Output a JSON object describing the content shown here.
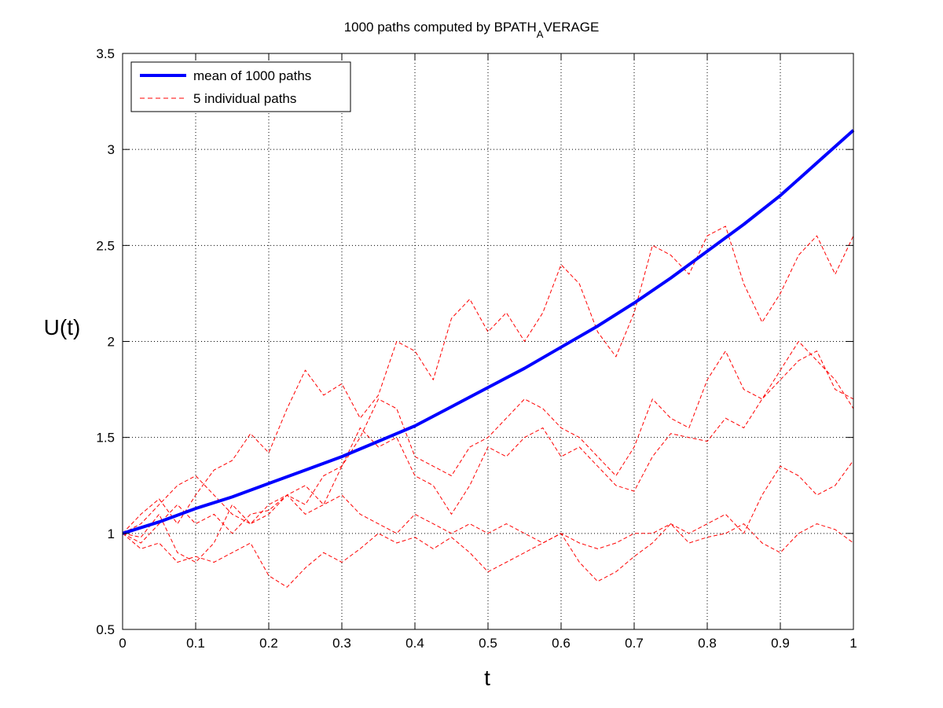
{
  "chart_data": {
    "type": "line",
    "title": "1000 paths computed by BPATH",
    "title_subscript": "A",
    "title_suffix": "VERAGE",
    "xlabel": "t",
    "ylabel": "U(t)",
    "xlim": [
      0,
      1
    ],
    "ylim": [
      0.5,
      3.5
    ],
    "xticks": [
      0,
      0.1,
      0.2,
      0.3,
      0.4,
      0.5,
      0.6,
      0.7,
      0.8,
      0.9,
      1
    ],
    "xtick_labels": [
      "0",
      "0.1",
      "0.2",
      "0.3",
      "0.4",
      "0.5",
      "0.6",
      "0.7",
      "0.8",
      "0.9",
      "1"
    ],
    "yticks": [
      0.5,
      1,
      1.5,
      2,
      2.5,
      3,
      3.5
    ],
    "ytick_labels": [
      "0.5",
      "1",
      "1.5",
      "2",
      "2.5",
      "3",
      "3.5"
    ],
    "grid": true,
    "legend_position": "top-left",
    "legend": [
      {
        "label": "mean of 1000 paths",
        "color": "#0000ff",
        "style": "solid"
      },
      {
        "label": "5 individual paths",
        "color": "#ff0000",
        "style": "dashed"
      }
    ],
    "series": [
      {
        "name": "mean of 1000 paths",
        "color": "#0000ff",
        "style": "solid",
        "x": [
          0,
          0.05,
          0.1,
          0.15,
          0.2,
          0.25,
          0.3,
          0.35,
          0.4,
          0.45,
          0.5,
          0.55,
          0.6,
          0.65,
          0.7,
          0.75,
          0.8,
          0.85,
          0.9,
          0.95,
          1
        ],
        "y": [
          1.0,
          1.06,
          1.13,
          1.19,
          1.26,
          1.33,
          1.4,
          1.48,
          1.56,
          1.66,
          1.76,
          1.86,
          1.97,
          2.08,
          2.2,
          2.33,
          2.47,
          2.61,
          2.76,
          2.93,
          3.1
        ]
      },
      {
        "name": "",
        "color": "#ff0000",
        "style": "dashed",
        "x": [
          0,
          0.025,
          0.05,
          0.075,
          0.1,
          0.125,
          0.15,
          0.175,
          0.2,
          0.225,
          0.25,
          0.275,
          0.3,
          0.325,
          0.35,
          0.375,
          0.4,
          0.425,
          0.45,
          0.475,
          0.5,
          0.525,
          0.55,
          0.575,
          0.6,
          0.625,
          0.65,
          0.675,
          0.7,
          0.725,
          0.75,
          0.775,
          0.8,
          0.825,
          0.85,
          0.875,
          0.9,
          0.925,
          0.95,
          0.975,
          1
        ],
        "y": [
          1.0,
          1.1,
          1.18,
          1.05,
          1.2,
          1.33,
          1.38,
          1.52,
          1.42,
          1.65,
          1.85,
          1.72,
          1.78,
          1.6,
          1.72,
          2.0,
          1.95,
          1.8,
          2.12,
          2.22,
          2.05,
          2.15,
          2.0,
          2.15,
          2.4,
          2.3,
          2.05,
          1.92,
          2.15,
          2.5,
          2.45,
          2.35,
          2.55,
          2.6,
          2.3,
          2.1,
          2.25,
          2.45,
          2.55,
          2.35,
          2.55
        ]
      },
      {
        "name": "",
        "color": "#ff0000",
        "style": "dashed",
        "x": [
          0,
          0.025,
          0.05,
          0.075,
          0.1,
          0.125,
          0.15,
          0.175,
          0.2,
          0.225,
          0.25,
          0.275,
          0.3,
          0.325,
          0.35,
          0.375,
          0.4,
          0.425,
          0.45,
          0.475,
          0.5,
          0.525,
          0.55,
          0.575,
          0.6,
          0.625,
          0.65,
          0.675,
          0.7,
          0.725,
          0.75,
          0.775,
          0.8,
          0.825,
          0.85,
          0.875,
          0.9,
          0.925,
          0.95,
          0.975,
          1
        ],
        "y": [
          1.0,
          0.95,
          1.05,
          1.15,
          1.05,
          1.1,
          1.0,
          1.1,
          1.12,
          1.2,
          1.15,
          1.3,
          1.35,
          1.5,
          1.7,
          1.65,
          1.4,
          1.35,
          1.3,
          1.45,
          1.5,
          1.6,
          1.7,
          1.65,
          1.55,
          1.5,
          1.4,
          1.3,
          1.45,
          1.7,
          1.6,
          1.55,
          1.8,
          1.95,
          1.75,
          1.7,
          1.85,
          2.0,
          1.9,
          1.8,
          1.65
        ]
      },
      {
        "name": "",
        "color": "#ff0000",
        "style": "dashed",
        "x": [
          0,
          0.025,
          0.05,
          0.075,
          0.1,
          0.125,
          0.15,
          0.175,
          0.2,
          0.225,
          0.25,
          0.275,
          0.3,
          0.325,
          0.35,
          0.375,
          0.4,
          0.425,
          0.45,
          0.475,
          0.5,
          0.525,
          0.55,
          0.575,
          0.6,
          0.625,
          0.65,
          0.675,
          0.7,
          0.725,
          0.75,
          0.775,
          0.8,
          0.825,
          0.85,
          0.875,
          0.9,
          0.925,
          0.95,
          0.975,
          1
        ],
        "y": [
          1.0,
          0.92,
          0.95,
          0.85,
          0.88,
          0.85,
          0.9,
          0.95,
          0.78,
          0.72,
          0.82,
          0.9,
          0.85,
          0.92,
          1.0,
          0.95,
          0.98,
          0.92,
          0.98,
          0.9,
          0.8,
          0.85,
          0.9,
          0.95,
          1.0,
          0.85,
          0.75,
          0.8,
          0.88,
          0.95,
          1.05,
          0.95,
          0.98,
          1.0,
          1.05,
          0.95,
          0.9,
          1.0,
          1.05,
          1.02,
          0.95
        ]
      },
      {
        "name": "",
        "color": "#ff0000",
        "style": "dashed",
        "x": [
          0,
          0.025,
          0.05,
          0.075,
          0.1,
          0.125,
          0.15,
          0.175,
          0.2,
          0.225,
          0.25,
          0.275,
          0.3,
          0.325,
          0.35,
          0.375,
          0.4,
          0.425,
          0.45,
          0.475,
          0.5,
          0.525,
          0.55,
          0.575,
          0.6,
          0.625,
          0.65,
          0.675,
          0.7,
          0.725,
          0.75,
          0.775,
          0.8,
          0.825,
          0.85,
          0.875,
          0.9,
          0.925,
          0.95,
          0.975,
          1
        ],
        "y": [
          1.0,
          0.98,
          1.1,
          0.9,
          0.85,
          0.95,
          1.15,
          1.05,
          1.1,
          1.2,
          1.25,
          1.15,
          1.35,
          1.55,
          1.45,
          1.5,
          1.3,
          1.25,
          1.1,
          1.25,
          1.45,
          1.4,
          1.5,
          1.55,
          1.4,
          1.45,
          1.35,
          1.25,
          1.22,
          1.4,
          1.52,
          1.5,
          1.48,
          1.6,
          1.55,
          1.7,
          1.8,
          1.9,
          1.95,
          1.75,
          1.7
        ]
      },
      {
        "name": "",
        "color": "#ff0000",
        "style": "dashed",
        "x": [
          0,
          0.025,
          0.05,
          0.075,
          0.1,
          0.125,
          0.15,
          0.175,
          0.2,
          0.225,
          0.25,
          0.275,
          0.3,
          0.325,
          0.35,
          0.375,
          0.4,
          0.425,
          0.45,
          0.475,
          0.5,
          0.525,
          0.55,
          0.575,
          0.6,
          0.625,
          0.65,
          0.675,
          0.7,
          0.725,
          0.75,
          0.775,
          0.8,
          0.825,
          0.85,
          0.875,
          0.9,
          0.925,
          0.95,
          0.975,
          1
        ],
        "y": [
          1.0,
          1.05,
          1.15,
          1.25,
          1.3,
          1.2,
          1.1,
          1.05,
          1.15,
          1.2,
          1.1,
          1.15,
          1.2,
          1.1,
          1.05,
          1.0,
          1.1,
          1.05,
          1.0,
          1.05,
          1.0,
          1.05,
          1.0,
          0.95,
          1.0,
          0.95,
          0.92,
          0.95,
          1.0,
          1.0,
          1.05,
          1.0,
          1.05,
          1.1,
          1.0,
          1.2,
          1.35,
          1.3,
          1.2,
          1.25,
          1.38
        ]
      }
    ]
  }
}
